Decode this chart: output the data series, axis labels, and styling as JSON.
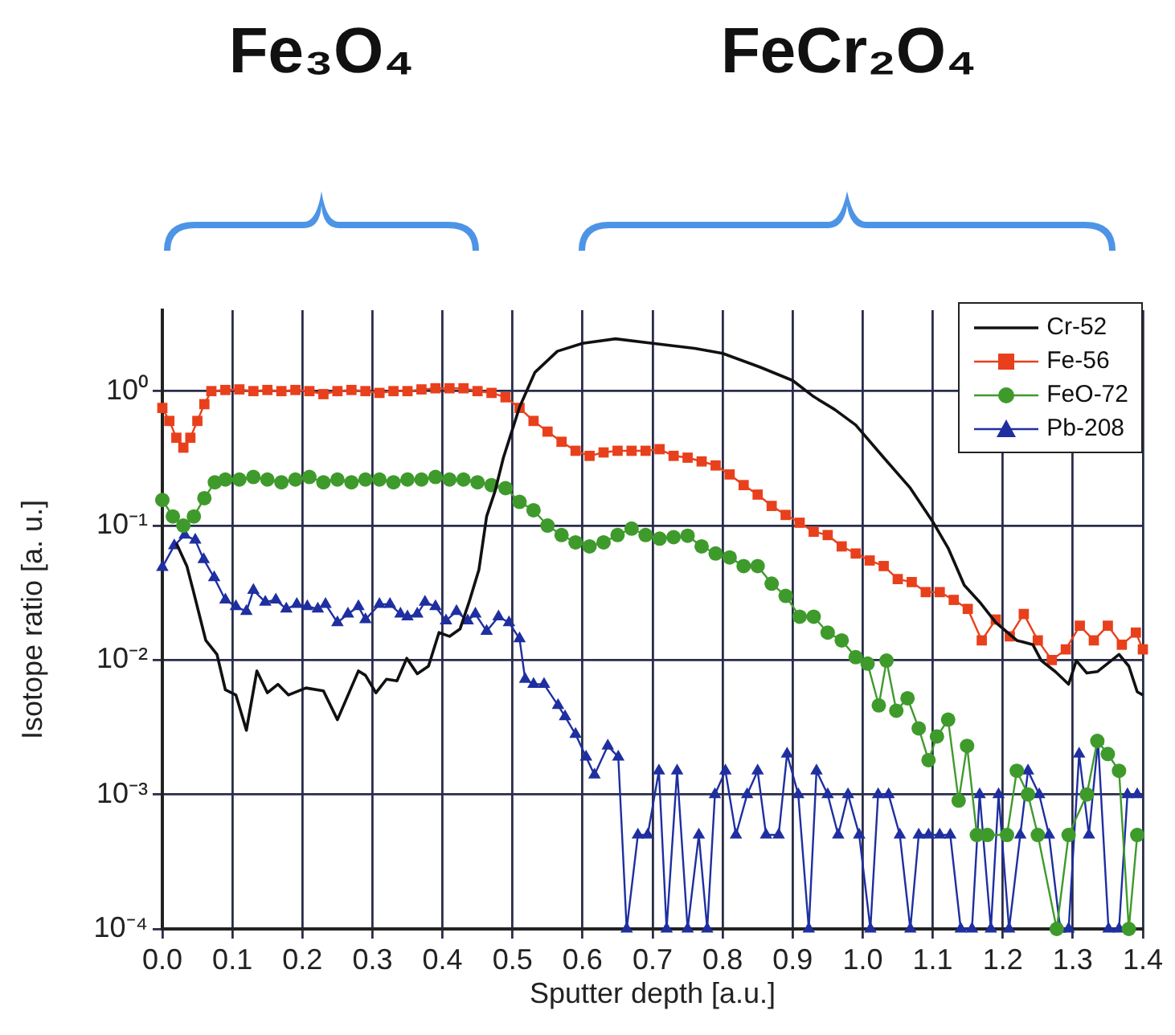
{
  "chart_data": {
    "type": "line",
    "xlabel": "Sputter depth [a.u.]",
    "ylabel": "Isotope ratio [a. u.]",
    "annotations": [
      "Fe₃O₄",
      "FeCr₂O₄"
    ],
    "log": "y",
    "grid": true,
    "legend": "top right",
    "line_style": "solid",
    "xlim": [
      0,
      1.4
    ],
    "xticks": [
      {
        "value": 0,
        "label": "0.0"
      },
      0.1,
      0.2,
      0.3,
      0.4,
      0.5,
      0.6,
      0.7,
      0.8,
      0.9,
      {
        "value": 1,
        "label": "1.0"
      },
      1.1,
      1.2,
      1.3,
      1.4
    ],
    "ylim": [
      0.0001,
      4
    ],
    "yticks": [
      {
        "value": 0.0001,
        "label": "10⁻⁴"
      },
      {
        "value": 0.001,
        "label": "10⁻³"
      },
      {
        "value": 0.01,
        "label": "10⁻²"
      },
      {
        "value": 0.1,
        "label": "10⁻¹"
      },
      {
        "value": 1,
        "label": "10⁰"
      }
    ],
    "series": [
      {
        "name": "Cr-52",
        "color": "#111111",
        "marker": "none",
        "x": [
          0.02,
          0.035,
          0.044,
          0.062,
          0.078,
          0.09,
          0.105,
          0.12,
          0.135,
          0.15,
          0.165,
          0.18,
          0.205,
          0.23,
          0.25,
          0.28,
          0.29,
          0.305,
          0.32,
          0.335,
          0.349,
          0.364,
          0.38,
          0.395,
          0.41,
          0.425,
          0.438,
          0.452,
          0.463,
          0.475,
          0.487,
          0.51,
          0.532,
          0.564,
          0.6,
          0.647,
          0.7,
          0.76,
          0.8,
          0.853,
          0.9,
          0.93,
          0.96,
          0.99,
          1.03,
          1.068,
          1.1,
          1.122,
          1.145,
          1.167,
          1.19,
          1.22,
          1.243,
          1.255,
          1.275,
          1.294,
          1.305,
          1.32,
          1.335,
          1.366,
          1.38,
          1.392,
          1.4
        ],
        "values": [
          0.074,
          0.05,
          0.033,
          0.014,
          0.011,
          0.006,
          0.0055,
          0.003,
          0.0083,
          0.0057,
          0.0066,
          0.0055,
          0.0062,
          0.0059,
          0.0036,
          0.0083,
          0.0077,
          0.0057,
          0.0072,
          0.007,
          0.0103,
          0.0079,
          0.009,
          0.016,
          0.015,
          0.017,
          0.027,
          0.047,
          0.117,
          0.18,
          0.32,
          0.76,
          1.38,
          1.98,
          2.27,
          2.45,
          2.27,
          2.08,
          1.91,
          1.51,
          1.2,
          0.91,
          0.73,
          0.56,
          0.32,
          0.19,
          0.107,
          0.068,
          0.036,
          0.027,
          0.019,
          0.014,
          0.013,
          0.0099,
          0.0082,
          0.0066,
          0.0099,
          0.008,
          0.0082,
          0.011,
          0.009,
          0.0058,
          0.0055
        ]
      },
      {
        "name": "Fe-56",
        "color": "#e8401c",
        "marker": "square",
        "x": [
          0,
          0.01,
          0.02,
          0.03,
          0.04,
          0.05,
          0.06,
          0.07,
          0.09,
          0.11,
          0.13,
          0.15,
          0.17,
          0.19,
          0.21,
          0.23,
          0.25,
          0.27,
          0.29,
          0.31,
          0.33,
          0.35,
          0.37,
          0.39,
          0.41,
          0.43,
          0.45,
          0.47,
          0.49,
          0.51,
          0.53,
          0.55,
          0.57,
          0.59,
          0.61,
          0.63,
          0.65,
          0.67,
          0.69,
          0.71,
          0.73,
          0.75,
          0.77,
          0.79,
          0.81,
          0.83,
          0.85,
          0.87,
          0.89,
          0.91,
          0.93,
          0.95,
          0.97,
          0.99,
          1.01,
          1.03,
          1.05,
          1.07,
          1.09,
          1.11,
          1.13,
          1.15,
          1.17,
          1.19,
          1.21,
          1.23,
          1.25,
          1.27,
          1.29,
          1.31,
          1.33,
          1.35,
          1.37,
          1.39,
          1.4
        ],
        "values": [
          0.75,
          0.6,
          0.45,
          0.38,
          0.45,
          0.6,
          0.8,
          1.0,
          1.02,
          1.03,
          1.0,
          1.02,
          1.0,
          1.02,
          1.0,
          0.95,
          1.0,
          1.02,
          1.0,
          0.97,
          1.0,
          1.0,
          1.03,
          1.05,
          1.05,
          1.05,
          1.0,
          0.97,
          0.9,
          0.75,
          0.6,
          0.5,
          0.42,
          0.36,
          0.33,
          0.35,
          0.36,
          0.36,
          0.36,
          0.37,
          0.33,
          0.32,
          0.3,
          0.28,
          0.24,
          0.2,
          0.17,
          0.14,
          0.12,
          0.105,
          0.09,
          0.085,
          0.07,
          0.062,
          0.055,
          0.05,
          0.04,
          0.038,
          0.032,
          0.032,
          0.028,
          0.024,
          0.014,
          0.02,
          0.015,
          0.022,
          0.014,
          0.01,
          0.012,
          0.018,
          0.014,
          0.018,
          0.013,
          0.016,
          0.012
        ]
      },
      {
        "name": "FeO-72",
        "color": "#3f9a2c",
        "marker": "circle",
        "x": [
          0,
          0.015,
          0.03,
          0.045,
          0.06,
          0.075,
          0.09,
          0.11,
          0.13,
          0.15,
          0.17,
          0.19,
          0.21,
          0.23,
          0.25,
          0.27,
          0.29,
          0.31,
          0.33,
          0.35,
          0.37,
          0.39,
          0.41,
          0.43,
          0.45,
          0.47,
          0.49,
          0.51,
          0.53,
          0.55,
          0.57,
          0.59,
          0.61,
          0.63,
          0.65,
          0.67,
          0.69,
          0.71,
          0.73,
          0.75,
          0.77,
          0.79,
          0.81,
          0.83,
          0.85,
          0.87,
          0.89,
          0.91,
          0.93,
          0.95,
          0.97,
          0.99,
          1.007,
          1.023,
          1.034,
          1.048,
          1.064,
          1.08,
          1.094,
          1.106,
          1.122,
          1.137,
          1.149,
          1.163,
          1.178,
          1.206,
          1.22,
          1.236,
          1.25,
          1.277,
          1.294,
          1.32,
          1.335,
          1.35,
          1.366,
          1.38,
          1.392
        ],
        "values": [
          0.155,
          0.117,
          0.1,
          0.117,
          0.16,
          0.21,
          0.22,
          0.22,
          0.23,
          0.22,
          0.21,
          0.22,
          0.23,
          0.21,
          0.22,
          0.21,
          0.22,
          0.22,
          0.21,
          0.22,
          0.22,
          0.23,
          0.22,
          0.22,
          0.21,
          0.2,
          0.19,
          0.15,
          0.13,
          0.1,
          0.085,
          0.075,
          0.07,
          0.075,
          0.085,
          0.095,
          0.085,
          0.08,
          0.082,
          0.084,
          0.07,
          0.062,
          0.058,
          0.05,
          0.05,
          0.037,
          0.03,
          0.021,
          0.021,
          0.016,
          0.014,
          0.0105,
          0.0094,
          0.0046,
          0.0099,
          0.0042,
          0.0052,
          0.0031,
          0.0018,
          0.0027,
          0.0036,
          0.0009,
          0.0023,
          0.0005,
          0.0005,
          0.0005,
          0.0015,
          0.001,
          0.0005,
          0.0001,
          0.0005,
          0.001,
          0.0025,
          0.002,
          0.0015,
          0.0001,
          0.0005
        ]
      },
      {
        "name": "Pb-208",
        "color": "#1f2fa0",
        "marker": "triangle",
        "x": [
          0,
          0.017,
          0.032,
          0.047,
          0.059,
          0.074,
          0.09,
          0.105,
          0.12,
          0.13,
          0.147,
          0.162,
          0.177,
          0.192,
          0.207,
          0.222,
          0.233,
          0.25,
          0.265,
          0.28,
          0.29,
          0.31,
          0.325,
          0.34,
          0.35,
          0.364,
          0.375,
          0.39,
          0.405,
          0.42,
          0.436,
          0.447,
          0.463,
          0.48,
          0.495,
          0.51,
          0.518,
          0.53,
          0.545,
          0.565,
          0.575,
          0.59,
          0.605,
          0.617,
          0.636,
          0.651,
          0.663,
          0.679,
          0.693,
          0.709,
          0.72,
          0.735,
          0.75,
          0.766,
          0.778,
          0.789,
          0.804,
          0.819,
          0.835,
          0.85,
          0.862,
          0.88,
          0.892,
          0.908,
          0.923,
          0.934,
          0.95,
          0.965,
          0.979,
          0.995,
          1.011,
          1.022,
          1.037,
          1.053,
          1.068,
          1.08,
          1.094,
          1.11,
          1.125,
          1.14,
          1.156,
          1.167,
          1.183,
          1.194,
          1.209,
          1.225,
          1.236,
          1.252,
          1.266,
          1.282,
          1.294,
          1.309,
          1.323,
          1.336,
          1.351,
          1.366,
          1.378,
          1.392
        ],
        "values": [
          0.049,
          0.071,
          0.085,
          0.078,
          0.056,
          0.041,
          0.028,
          0.025,
          0.023,
          0.033,
          0.027,
          0.028,
          0.024,
          0.026,
          0.025,
          0.024,
          0.026,
          0.019,
          0.022,
          0.025,
          0.02,
          0.026,
          0.026,
          0.022,
          0.021,
          0.022,
          0.027,
          0.025,
          0.0196,
          0.023,
          0.0196,
          0.022,
          0.0164,
          0.021,
          0.019,
          0.0144,
          0.0072,
          0.0066,
          0.0066,
          0.0046,
          0.0038,
          0.0028,
          0.0019,
          0.0014,
          0.0023,
          0.0019,
          0.0001,
          0.0005,
          0.0005,
          0.0015,
          0.0001,
          0.0015,
          0.0001,
          0.0005,
          0.0001,
          0.001,
          0.0015,
          0.0005,
          0.001,
          0.0015,
          0.0005,
          0.0005,
          0.002,
          0.001,
          0.0001,
          0.0015,
          0.001,
          0.0005,
          0.001,
          0.0005,
          0.0001,
          0.001,
          0.001,
          0.0005,
          0.0001,
          0.0005,
          0.0005,
          0.0005,
          0.0005,
          0.0001,
          0.0001,
          0.001,
          0.0001,
          0.001,
          0.0001,
          0.0005,
          0.0015,
          0.001,
          0.0005,
          0.0001,
          0.0001,
          0.002,
          0.0005,
          0.0025,
          0.0001,
          0.0001,
          0.001,
          0.001
        ]
      }
    ]
  }
}
